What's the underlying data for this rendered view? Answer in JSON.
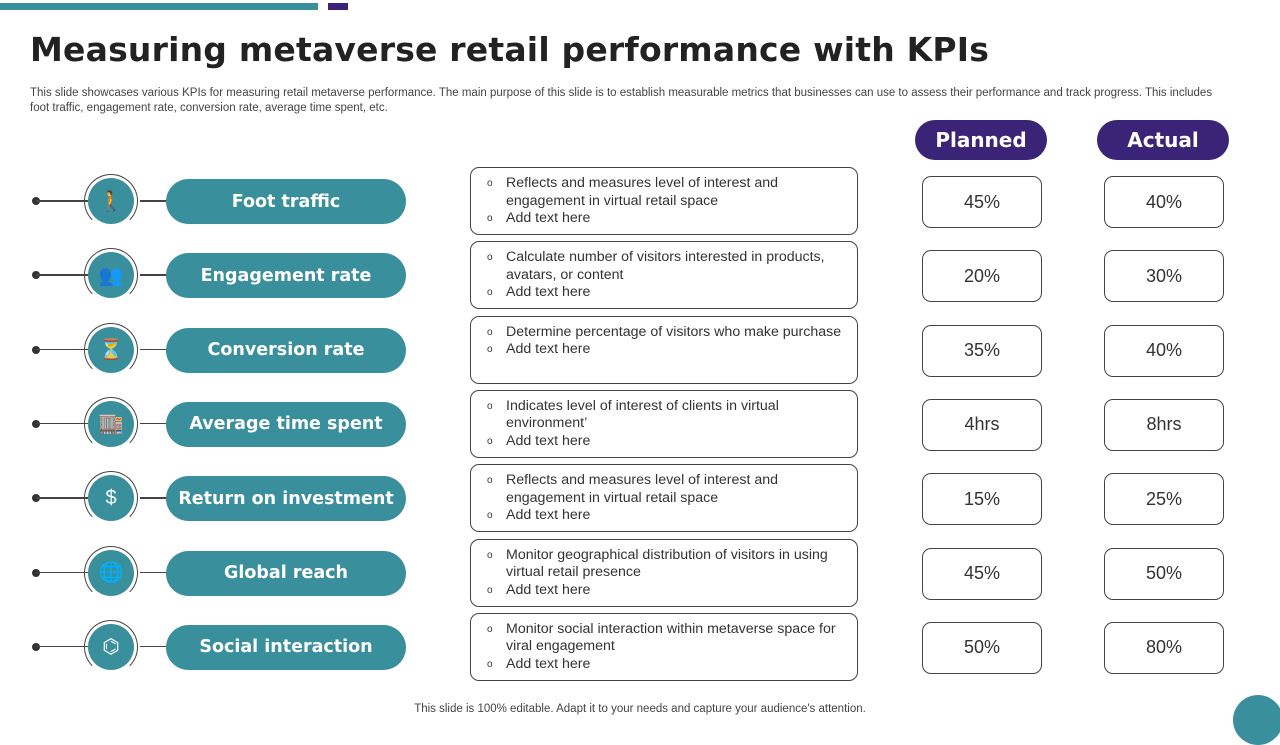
{
  "title": "Measuring metaverse retail performance with KPIs",
  "subtitle": "This slide showcases various KPIs for measuring retail metaverse performance. The main purpose of this slide is to establish measurable metrics that businesses can use to assess their performance and track progress. This includes foot traffic, engagement rate, conversion rate, average time spent, etc.",
  "headers": {
    "planned": "Planned",
    "actual": "Actual"
  },
  "colors": {
    "teal": "#3a8f9c",
    "purple": "#3b2478"
  },
  "kpis": [
    {
      "name": "Foot traffic",
      "icon": "walking-person-icon",
      "glyph": "🚶",
      "desc": [
        "Reflects and measures level of interest and engagement in virtual retail space",
        "Add text here"
      ],
      "planned": "45%",
      "actual": "40%"
    },
    {
      "name": "Engagement rate",
      "icon": "people-group-icon",
      "glyph": "👥",
      "desc": [
        "Calculate number of visitors interested in products, avatars, or content",
        "Add text here"
      ],
      "planned": "20%",
      "actual": "30%"
    },
    {
      "name": "Conversion rate",
      "icon": "funnel-icon",
      "glyph": "⏳",
      "desc": [
        "Determine percentage of visitors who make purchase",
        "Add text here"
      ],
      "planned": "35%",
      "actual": "40%"
    },
    {
      "name": "Average time spent",
      "icon": "store-clock-icon",
      "glyph": "🏬",
      "desc": [
        "Indicates level of interest of clients in virtual environment’",
        "Add text here"
      ],
      "planned": "4hrs",
      "actual": "8hrs"
    },
    {
      "name": "Return on investment",
      "icon": "dollar-cycle-icon",
      "glyph": "$",
      "desc": [
        "Reflects and measures level of interest and engagement in virtual retail space",
        "Add text here"
      ],
      "planned": "15%",
      "actual": "25%"
    },
    {
      "name": "Global reach",
      "icon": "globe-icon",
      "glyph": "🌐",
      "desc": [
        "Monitor geographical distribution of visitors in using virtual retail presence",
        "Add text here"
      ],
      "planned": "45%",
      "actual": "50%"
    },
    {
      "name": "Social interaction",
      "icon": "network-icon",
      "glyph": "⌬",
      "desc": [
        "Monitor social interaction within metaverse space for viral engagement",
        "Add text here"
      ],
      "planned": "50%",
      "actual": "80%"
    }
  ],
  "footer": "This slide is 100% editable. Adapt it to your needs and capture your audience's attention."
}
